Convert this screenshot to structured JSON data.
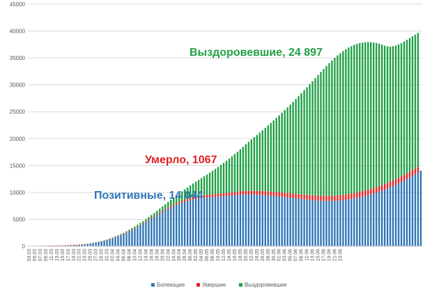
{
  "chart_data": {
    "type": "bar",
    "stacked": true,
    "ylim": [
      0,
      45000
    ],
    "y_ticks": [
      0,
      5000,
      10000,
      15000,
      20000,
      25000,
      30000,
      35000,
      40000,
      45000
    ],
    "y_tick_labels": [
      "0",
      "5000",
      "10000",
      "15000",
      "20000",
      "25000",
      "30000",
      "35000",
      "40000",
      "45000"
    ],
    "grid": true,
    "x_start": "2020-03-03",
    "x_label_every": 2,
    "x_labels": [
      "03.03",
      "05.03",
      "07.03",
      "09.03",
      "11.03",
      "13.03",
      "15.03",
      "17.03",
      "19.03",
      "21.03",
      "23.03",
      "25.03",
      "27.03",
      "29.03",
      "31.03",
      "02.04",
      "04.04",
      "06.04",
      "08.04",
      "10.04",
      "12.04",
      "14.04",
      "16.04",
      "18.04",
      "20.04",
      "22.04",
      "24.04",
      "26.04",
      "28.04",
      "30.04",
      "02.05",
      "04.05",
      "06.05",
      "08.05",
      "10.05",
      "12.05",
      "14.05",
      "16.05",
      "18.05",
      "20.05",
      "22.05",
      "24.05",
      "26.05",
      "28.05",
      "30.05",
      "01.06",
      "03.06",
      "05.06",
      "07.06",
      "09.06",
      "11.06",
      "13.06",
      "15.06",
      "17.06",
      "19.06",
      "21.06",
      "23.06"
    ],
    "series": [
      {
        "name": "Болеющие",
        "color": "#2E75B6",
        "values": [
          20,
          30,
          40,
          50,
          60,
          70,
          80,
          90,
          100,
          110,
          120,
          135,
          150,
          165,
          180,
          200,
          225,
          250,
          280,
          320,
          370,
          430,
          500,
          580,
          670,
          770,
          880,
          1000,
          1140,
          1300,
          1460,
          1640,
          1840,
          2050,
          2270,
          2500,
          2750,
          3010,
          3280,
          3560,
          3850,
          4150,
          4450,
          4760,
          5070,
          5390,
          5700,
          6010,
          6320,
          6620,
          6910,
          7180,
          7440,
          7680,
          7900,
          8100,
          8280,
          8440,
          8580,
          8700,
          8800,
          8880,
          8950,
          9010,
          9060,
          9100,
          9140,
          9180,
          9220,
          9260,
          9300,
          9340,
          9380,
          9420,
          9460,
          9500,
          9540,
          9580,
          9600,
          9600,
          9600,
          9580,
          9560,
          9530,
          9500,
          9460,
          9420,
          9380,
          9330,
          9280,
          9230,
          9180,
          9120,
          9060,
          9000,
          8940,
          8880,
          8820,
          8760,
          8700,
          8650,
          8600,
          8560,
          8520,
          8480,
          8450,
          8430,
          8420,
          8420,
          8430,
          8450,
          8480,
          8520,
          8570,
          8630,
          8700,
          8780,
          8870,
          8970,
          9080,
          9200,
          9330,
          9470,
          9620,
          9780,
          9950,
          10130,
          10320,
          10520,
          10730,
          10950,
          11180,
          11420,
          11670,
          11930,
          12200,
          12480,
          12770,
          13070,
          13380,
          13700,
          14044
        ]
      },
      {
        "name": "Умершие",
        "color": "#E02020",
        "values": [
          0,
          0,
          0,
          0,
          0,
          0,
          1,
          1,
          1,
          2,
          2,
          3,
          3,
          4,
          5,
          6,
          7,
          8,
          9,
          10,
          12,
          14,
          16,
          18,
          21,
          24,
          28,
          32,
          37,
          42,
          48,
          55,
          62,
          70,
          78,
          87,
          96,
          105,
          115,
          125,
          136,
          147,
          158,
          170,
          182,
          194,
          207,
          220,
          233,
          246,
          259,
          273,
          287,
          301,
          315,
          330,
          345,
          360,
          375,
          390,
          405,
          420,
          435,
          450,
          465,
          480,
          495,
          510,
          525,
          540,
          555,
          570,
          585,
          600,
          615,
          630,
          645,
          660,
          673,
          685,
          697,
          709,
          721,
          733,
          745,
          756,
          767,
          778,
          789,
          800,
          810,
          820,
          830,
          840,
          850,
          860,
          869,
          878,
          887,
          896,
          905,
          913,
          921,
          929,
          937,
          945,
          952,
          959,
          966,
          973,
          980,
          986,
          992,
          998,
          1004,
          1010,
          1015,
          1020,
          1025,
          1030,
          1034,
          1038,
          1042,
          1046,
          1049,
          1052,
          1055,
          1057,
          1059,
          1061,
          1062,
          1063,
          1064,
          1065,
          1065,
          1066,
          1066,
          1066,
          1067,
          1067,
          1067
        ]
      },
      {
        "name": "Выздоровевшие",
        "color": "#1FA045",
        "values": [
          0,
          0,
          0,
          0,
          0,
          0,
          0,
          0,
          0,
          0,
          0,
          0,
          0,
          0,
          0,
          0,
          0,
          0,
          0,
          0,
          0,
          0,
          5,
          10,
          15,
          25,
          35,
          45,
          55,
          70,
          85,
          100,
          120,
          140,
          160,
          185,
          210,
          240,
          270,
          300,
          340,
          380,
          430,
          480,
          540,
          600,
          670,
          750,
          840,
          940,
          1050,
          1170,
          1300,
          1440,
          1590,
          1760,
          1940,
          2130,
          2340,
          2560,
          2790,
          3030,
          3280,
          3540,
          3810,
          4090,
          4380,
          4680,
          4990,
          5310,
          5640,
          5980,
          6330,
          6690,
          7060,
          7440,
          7830,
          8230,
          8700,
          9110,
          9530,
          9960,
          10400,
          10850,
          11310,
          11780,
          12260,
          12750,
          13250,
          13760,
          14280,
          14810,
          15350,
          15900,
          16460,
          17030,
          17610,
          18200,
          18800,
          19410,
          20000,
          20600,
          21200,
          21800,
          22400,
          22990,
          23560,
          24110,
          24640,
          25130,
          25590,
          26010,
          26390,
          26720,
          27000,
          27230,
          27410,
          27540,
          27620,
          27650,
          27630,
          27560,
          27440,
          27270,
          27050,
          26780,
          26460,
          26100,
          25700,
          25370,
          25110,
          24930,
          24820,
          24770,
          24770,
          24800,
          24840,
          24870,
          24885,
          24895,
          24897
        ]
      }
    ],
    "annotations": [
      {
        "text": "Выздоровевшие, 24 897",
        "color": "#1FA045"
      },
      {
        "text": "Умерло, 1067",
        "color": "#E02020"
      },
      {
        "text": "Позитивные, 14 044",
        "color": "#2E75B6"
      }
    ],
    "legend_position": "bottom"
  }
}
